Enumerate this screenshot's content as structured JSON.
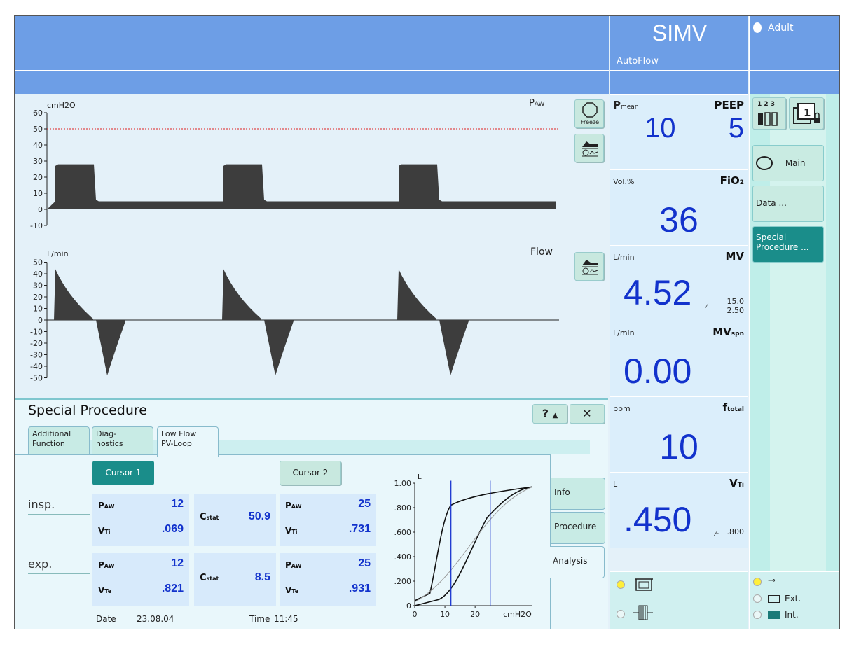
{
  "header": {
    "mode": "SIMV",
    "submode": "AutoFlow",
    "patient": "Adult"
  },
  "paw_wave": {
    "unit": "cmH2O",
    "label": "P",
    "label_sub": "AW",
    "ticks": [
      "60",
      "50",
      "40",
      "30",
      "20",
      "10",
      "0",
      "-10"
    ],
    "alarm_limit": 50
  },
  "flow_wave": {
    "unit": "L/min",
    "label": "Flow",
    "ticks": [
      "50",
      "40",
      "30",
      "20",
      "10",
      "0",
      "-10",
      "-20",
      "-30",
      "-40",
      "-50"
    ]
  },
  "wave_buttons": {
    "freeze": "Freeze"
  },
  "params": {
    "pmean": {
      "label": "P",
      "label_sub": "mean",
      "value": "10"
    },
    "peep": {
      "label": "PEEP",
      "value": "5"
    },
    "fio2": {
      "unit": "Vol.%",
      "label": "FiO",
      "label_sub": "2",
      "value": "36"
    },
    "mv": {
      "unit": "L/min",
      "label": "MV",
      "value": "4.52",
      "upper": "15.0",
      "lower": "2.50"
    },
    "mvspn": {
      "unit": "L/min",
      "label": "MV",
      "label_sub": "spn",
      "value": "0.00"
    },
    "ftotal": {
      "unit": "bpm",
      "label": "f",
      "label_sub": "total",
      "value": "10"
    },
    "vti": {
      "unit": "L",
      "label": "V",
      "label_sub": "Ti",
      "value": ".450",
      "limit": ".800"
    }
  },
  "nav": {
    "main": "Main",
    "data": "Data ...",
    "special": "Special Procedure ..."
  },
  "special_procedure": {
    "title": "Special Procedure",
    "help": "?",
    "close": "✕",
    "tabs": [
      {
        "line1": "Additional",
        "line2": "Function"
      },
      {
        "line1": "Diag-",
        "line2": "nostics"
      },
      {
        "line1": "Low Flow",
        "line2": "PV-Loop"
      }
    ],
    "cursor1": "Cursor 1",
    "cursor2": "Cursor 2",
    "row_insp": "insp.",
    "row_exp": "exp.",
    "insp": {
      "c1": {
        "paw_label": "P",
        "paw_sub": "AW",
        "paw": "12",
        "v_label": "V",
        "v_sub": "Ti",
        "v": ".069"
      },
      "cstat": {
        "label": "C",
        "sub": "stat",
        "value": "50.9"
      },
      "c2": {
        "paw_label": "P",
        "paw_sub": "AW",
        "paw": "25",
        "v_label": "V",
        "v_sub": "Ti",
        "v": ".731"
      }
    },
    "exp": {
      "c1": {
        "paw_label": "P",
        "paw_sub": "AW",
        "paw": "12",
        "v_label": "V",
        "v_sub": "Te",
        "v": ".821"
      },
      "cstat": {
        "label": "C",
        "sub": "stat",
        "value": "8.5"
      },
      "c2": {
        "paw_label": "P",
        "paw_sub": "AW",
        "paw": "25",
        "v_label": "V",
        "v_sub": "Te",
        "v": ".931"
      }
    },
    "date_label": "Date",
    "date": "23.08.04",
    "time_label": "Time",
    "time": "11:45",
    "side_tabs": [
      "Info",
      "Procedure",
      "Analysis"
    ],
    "loop": {
      "y_unit": "L",
      "y_ticks": [
        "1.00",
        ".800",
        ".600",
        ".400",
        ".200",
        "0"
      ],
      "x_ticks": [
        "0",
        "10",
        "20"
      ],
      "x_unit": "cmH2O",
      "cursors_cmH2O": [
        12,
        25
      ]
    }
  },
  "status": {
    "ext": "Ext.",
    "int": "Int."
  },
  "colors": {
    "band": "#6d9ee6",
    "value": "#1232cc",
    "wave": "#3d3d3d",
    "cursor_btn": "#1a8d8a",
    "nav_active": "#1a8d8a"
  }
}
